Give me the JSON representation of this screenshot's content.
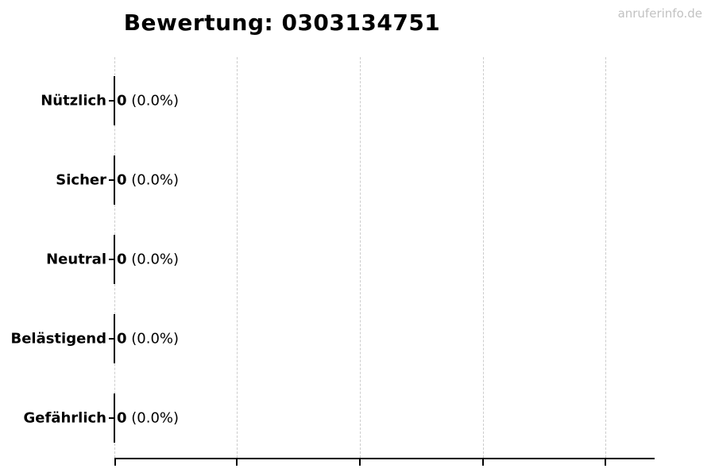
{
  "page": {
    "watermark": "anruferinfo.de"
  },
  "chart_data": {
    "type": "bar",
    "orientation": "horizontal",
    "title": "Bewertung: 0303134751",
    "categories": [
      "Nützlich",
      "Sicher",
      "Neutral",
      "Belästigend",
      "Gefährlich"
    ],
    "values": [
      0,
      0,
      0,
      0,
      0
    ],
    "percentages": [
      0.0,
      0.0,
      0.0,
      0.0,
      0.0
    ],
    "value_labels": [
      {
        "count": "0",
        "pct": " (0.0%)"
      },
      {
        "count": "0",
        "pct": " (0.0%)"
      },
      {
        "count": "0",
        "pct": " (0.0%)"
      },
      {
        "count": "0",
        "pct": " (0.0%)"
      },
      {
        "count": "0",
        "pct": " (0.0%)"
      }
    ],
    "xlabel": "",
    "ylabel": "",
    "x_tick_labels": [],
    "grid": "vertical-dashed",
    "legend": "none",
    "colors": {
      "text": "#000000",
      "gridline": "#cccccc",
      "axis": "#000000",
      "watermark": "#c2c2c2",
      "background": "#ffffff"
    },
    "watermark": "anruferinfo.de"
  }
}
